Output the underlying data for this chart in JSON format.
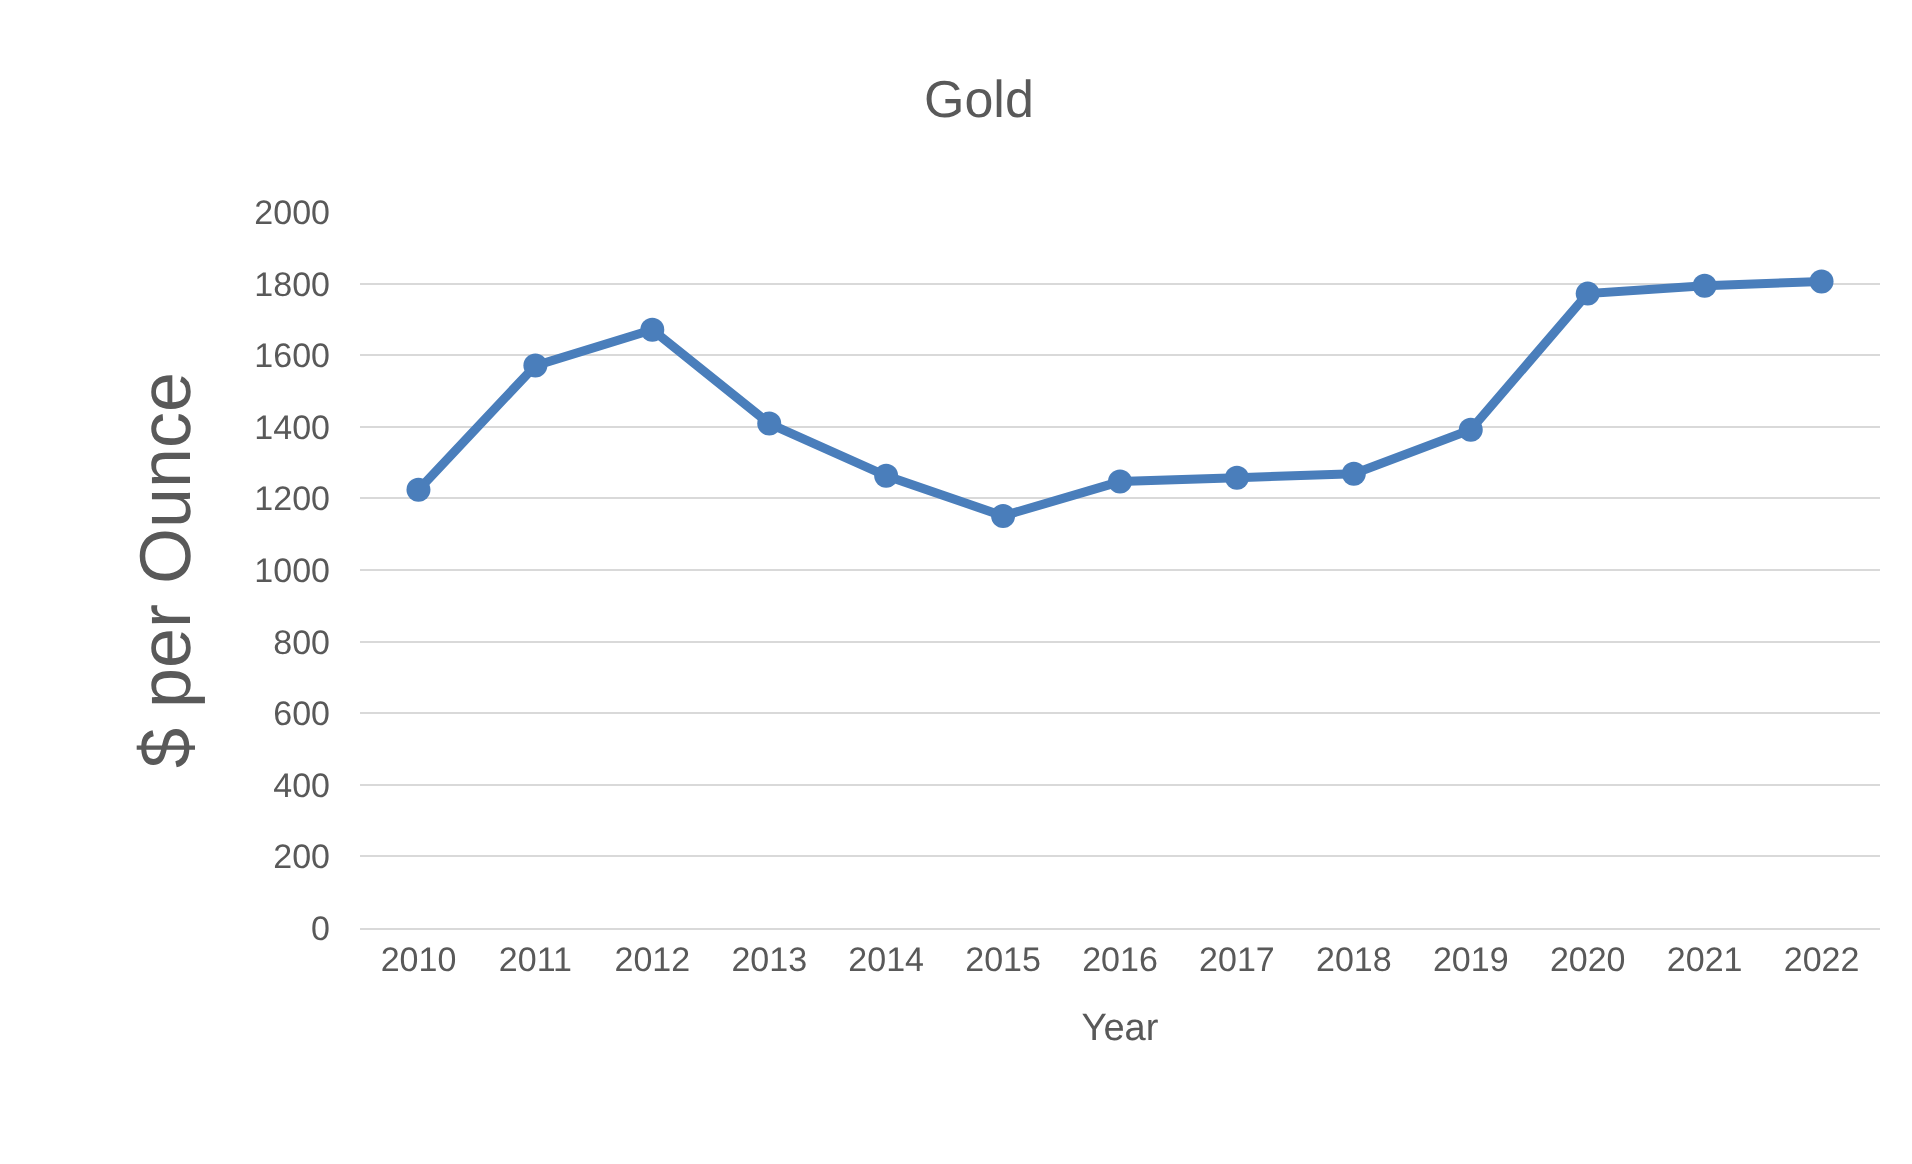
{
  "chart_data": {
    "type": "line",
    "title": "Gold",
    "xlabel": "Year",
    "ylabel": "$ per Ounce",
    "categories": [
      "2010",
      "2011",
      "2012",
      "2013",
      "2014",
      "2015",
      "2016",
      "2017",
      "2018",
      "2019",
      "2020",
      "2021",
      "2022"
    ],
    "series": [
      {
        "color": "#4a7ebb",
        "values": [
          1224,
          1571,
          1671,
          1409,
          1263,
          1151,
          1247,
          1258,
          1269,
          1392,
          1772,
          1794,
          1806
        ]
      }
    ],
    "ylim": [
      0,
      2000
    ],
    "yticks": [
      0,
      200,
      400,
      600,
      800,
      1000,
      1200,
      1400,
      1600,
      1800,
      2000
    ],
    "grid": "y",
    "marker": "circle",
    "line_style": "solid"
  }
}
